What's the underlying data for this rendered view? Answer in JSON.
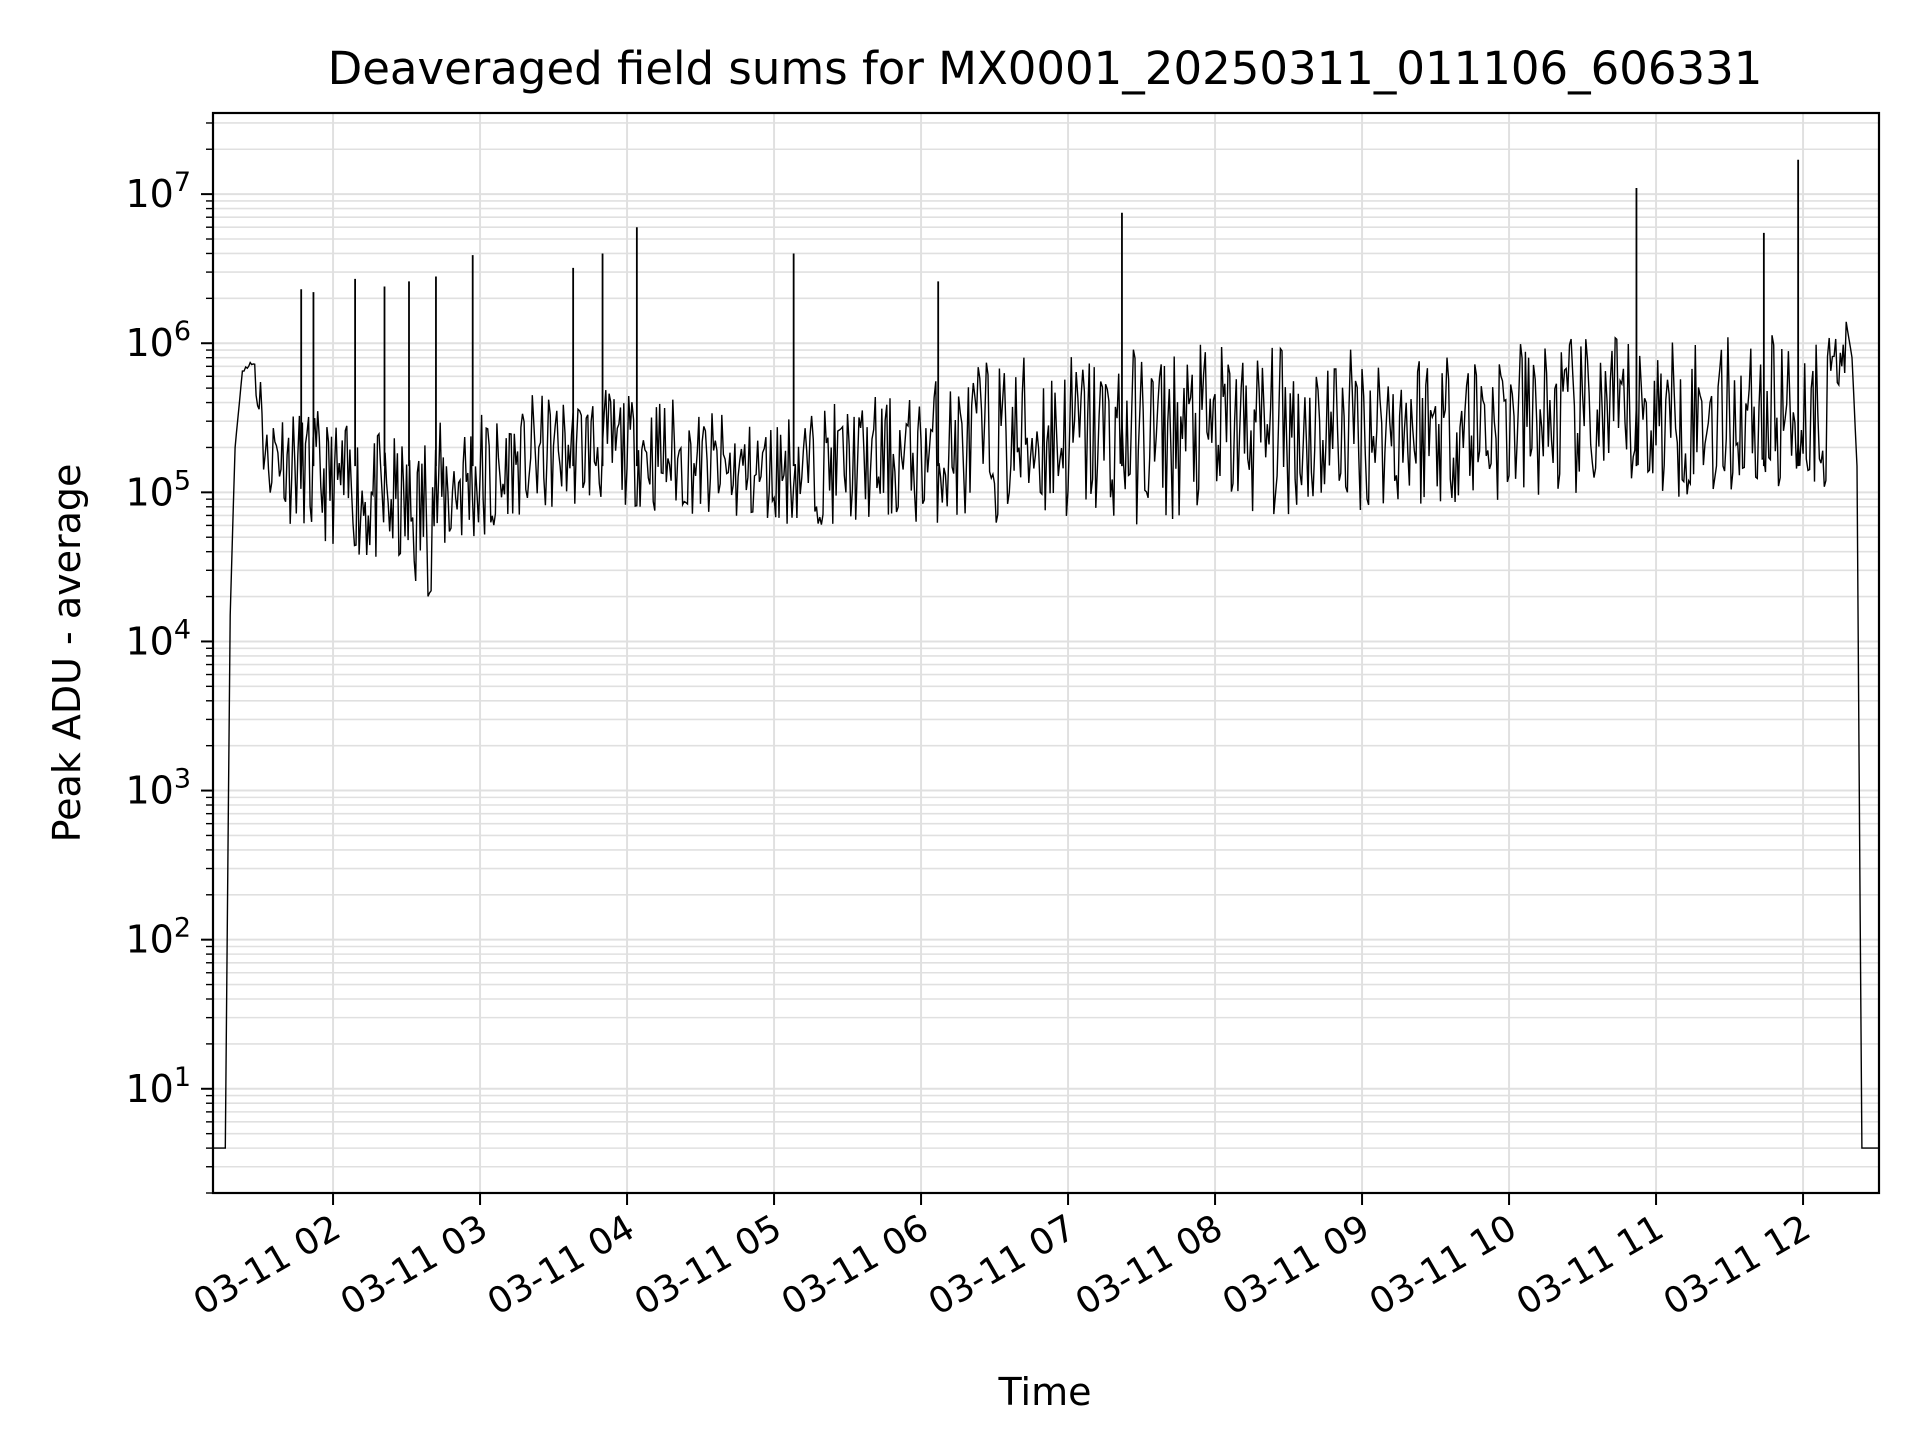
{
  "chart_data": {
    "type": "line",
    "title": "Deaveraged field sums for MX0001_20250311_011106_606331",
    "xlabel": "Time",
    "ylabel": "Peak ADU - average",
    "x_scale": "time",
    "y_scale": "log",
    "xlim": [
      "03-11 01:11",
      "03-11 12:31"
    ],
    "ylim": [
      2,
      35000000
    ],
    "x_ticks": [
      "03-11 02",
      "03-11 03",
      "03-11 04",
      "03-11 05",
      "03-11 06",
      "03-11 07",
      "03-11 08",
      "03-11 09",
      "03-11 10",
      "03-11 11",
      "03-11 12"
    ],
    "y_ticks": [
      {
        "value": 10,
        "base": "10",
        "exp": "1"
      },
      {
        "value": 100,
        "base": "10",
        "exp": "2"
      },
      {
        "value": 1000,
        "base": "10",
        "exp": "3"
      },
      {
        "value": 10000,
        "base": "10",
        "exp": "4"
      },
      {
        "value": 100000,
        "base": "10",
        "exp": "5"
      },
      {
        "value": 1000000,
        "base": "10",
        "exp": "6"
      },
      {
        "value": 10000000,
        "base": "10",
        "exp": "7"
      }
    ],
    "grid": true,
    "line_color": "#000000",
    "grid_color": "#e0e0e0",
    "series": [
      {
        "x": [
          "03-11 01:11",
          "03-11 01:13",
          "03-11 01:14",
          "03-11 01:16",
          "03-11 01:18",
          "03-11 01:20",
          "03-11 01:23",
          "03-11 01:25",
          "03-11 01:28",
          "03-11 01:31",
          "03-11 01:35",
          "03-11 01:40",
          "03-11 01:45",
          "03-11 01:50",
          "03-11 01:55",
          "03-11 02:00",
          "03-11 02:05",
          "03-11 02:10",
          "03-11 02:15",
          "03-11 02:20",
          "03-11 02:25",
          "03-11 02:30",
          "03-11 02:35",
          "03-11 02:40",
          "03-11 02:45",
          "03-11 02:50",
          "03-11 02:55",
          "03-11 03:00",
          "03-11 03:05",
          "03-11 03:10",
          "03-11 03:20",
          "03-11 03:30",
          "03-11 03:40",
          "03-11 03:50",
          "03-11 04:00",
          "03-11 04:10",
          "03-11 04:20",
          "03-11 04:30",
          "03-11 04:40",
          "03-11 04:50",
          "03-11 05:00",
          "03-11 05:10",
          "03-11 05:20",
          "03-11 05:30",
          "03-11 05:40",
          "03-11 05:50",
          "03-11 06:00",
          "03-11 06:10",
          "03-11 06:20",
          "03-11 06:30",
          "03-11 06:40",
          "03-11 06:50",
          "03-11 07:00",
          "03-11 07:10",
          "03-11 07:20",
          "03-11 07:30",
          "03-11 07:40",
          "03-11 07:50",
          "03-11 08:00",
          "03-11 08:10",
          "03-11 08:20",
          "03-11 08:30",
          "03-11 08:40",
          "03-11 08:50",
          "03-11 09:00",
          "03-11 09:10",
          "03-11 09:20",
          "03-11 09:30",
          "03-11 09:40",
          "03-11 09:50",
          "03-11 10:00",
          "03-11 10:10",
          "03-11 10:20",
          "03-11 10:30",
          "03-11 10:40",
          "03-11 10:50",
          "03-11 11:00",
          "03-11 11:10",
          "03-11 11:20",
          "03-11 11:30",
          "03-11 11:40",
          "03-11 11:50",
          "03-11 12:00",
          "03-11 12:10",
          "03-11 12:14",
          "03-11 12:17",
          "03-11 12:20",
          "03-11 12:22",
          "03-11 12:24",
          "03-11 12:25",
          "03-11 12:26",
          "03-11 12:31"
        ],
        "y": [
          4,
          4,
          4,
          4,
          15000,
          200000,
          650000,
          750000,
          700000,
          300000,
          90000,
          400000,
          60000,
          350000,
          45000,
          300000,
          40000,
          280000,
          30000,
          250000,
          28000,
          220000,
          20000,
          300000,
          30000,
          350000,
          40000,
          400000,
          35000,
          350000,
          70000,
          450000,
          80000,
          500000,
          80000,
          450000,
          70000,
          350000,
          60000,
          300000,
          60000,
          350000,
          60000,
          400000,
          60000,
          450000,
          60000,
          600000,
          60000,
          800000,
          60000,
          900000,
          60000,
          950000,
          60000,
          950000,
          60000,
          1000000,
          65000,
          1000000,
          65000,
          1000000,
          70000,
          1000000,
          75000,
          1000000,
          75000,
          1050000,
          80000,
          1050000,
          80000,
          1100000,
          85000,
          1100000,
          85000,
          1100000,
          90000,
          1150000,
          90000,
          1150000,
          95000,
          1150000,
          100000,
          1200000,
          500000,
          1600000,
          800000,
          150000,
          4,
          4,
          4,
          4
        ],
        "spikes": [
          {
            "x": "03-11 01:47",
            "y": 2300000
          },
          {
            "x": "03-11 01:52",
            "y": 2200000
          },
          {
            "x": "03-11 02:09",
            "y": 2700000
          },
          {
            "x": "03-11 02:21",
            "y": 2400000
          },
          {
            "x": "03-11 02:31",
            "y": 2600000
          },
          {
            "x": "03-11 02:42",
            "y": 2800000
          },
          {
            "x": "03-11 02:57",
            "y": 3900000
          },
          {
            "x": "03-11 03:38",
            "y": 3200000
          },
          {
            "x": "03-11 03:50",
            "y": 4000000
          },
          {
            "x": "03-11 04:04",
            "y": 6000000
          },
          {
            "x": "03-11 05:08",
            "y": 4000000
          },
          {
            "x": "03-11 06:07",
            "y": 2600000
          },
          {
            "x": "03-11 07:22",
            "y": 7500000
          },
          {
            "x": "03-11 10:52",
            "y": 11000000
          },
          {
            "x": "03-11 11:44",
            "y": 5500000
          },
          {
            "x": "03-11 11:58",
            "y": 17000000
          }
        ]
      }
    ]
  }
}
